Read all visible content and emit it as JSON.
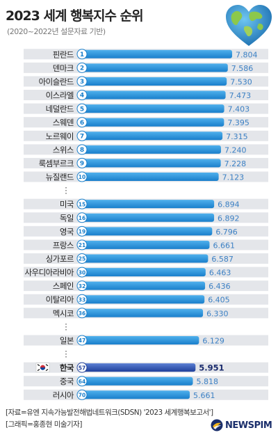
{
  "title": "2023 세계 행복지수 순위",
  "subtitle": "(2020~2022년 설문자료 기반)",
  "footer": {
    "source": "[자료=유엔 지속가능발전해법네트워크(SDSN) '2023 세계행복보고서']",
    "credit": "[그래픽=홍종현 미술기자]"
  },
  "logo": {
    "text": "NEWSPIM"
  },
  "colors": {
    "bar_light": "#4fb0ec",
    "bar_dark": "#1a7fcb",
    "highlight_light": "#5b7fd3",
    "highlight_dark": "#1f3f9a",
    "row_band": "#e4e6ea",
    "value_text": "#3c80c4",
    "highlight_text": "#1a2b6d"
  },
  "chart_data": {
    "type": "bar",
    "orientation": "horizontal",
    "title": "2023 세계 행복지수 순위",
    "subtitle": "(2020~2022년 설문자료 기반)",
    "xlim": [
      0,
      7.804
    ],
    "rows": [
      {
        "kind": "country",
        "name": "핀란드",
        "rank": "1",
        "value": "7.804"
      },
      {
        "kind": "country",
        "name": "덴마크",
        "rank": "2",
        "value": "7.586"
      },
      {
        "kind": "country",
        "name": "아이슬란드",
        "rank": "3",
        "value": "7.530"
      },
      {
        "kind": "country",
        "name": "이스라엘",
        "rank": "4",
        "value": "7.473"
      },
      {
        "kind": "country",
        "name": "네덜란드",
        "rank": "5",
        "value": "7.403"
      },
      {
        "kind": "country",
        "name": "스웨덴",
        "rank": "6",
        "value": "7.395"
      },
      {
        "kind": "country",
        "name": "노르웨이",
        "rank": "7",
        "value": "7.315"
      },
      {
        "kind": "country",
        "name": "스위스",
        "rank": "8",
        "value": "7.240"
      },
      {
        "kind": "country",
        "name": "룩셈부르크",
        "rank": "9",
        "value": "7.228"
      },
      {
        "kind": "country",
        "name": "뉴질랜드",
        "rank": "10",
        "value": "7.123"
      },
      {
        "kind": "gap",
        "name": "⋮"
      },
      {
        "kind": "country",
        "name": "미국",
        "rank": "15",
        "value": "6.894"
      },
      {
        "kind": "country",
        "name": "독일",
        "rank": "16",
        "value": "6.892"
      },
      {
        "kind": "country",
        "name": "영국",
        "rank": "19",
        "value": "6.796"
      },
      {
        "kind": "country",
        "name": "프랑스",
        "rank": "21",
        "value": "6.661"
      },
      {
        "kind": "country",
        "name": "싱가포르",
        "rank": "25",
        "value": "6.587"
      },
      {
        "kind": "country",
        "name": "사우디아라비아",
        "rank": "30",
        "value": "6.463"
      },
      {
        "kind": "country",
        "name": "스페인",
        "rank": "32",
        "value": "6.436"
      },
      {
        "kind": "country",
        "name": "이탈리아",
        "rank": "33",
        "value": "6.405"
      },
      {
        "kind": "country",
        "name": "멕시코",
        "rank": "36",
        "value": "6.330"
      },
      {
        "kind": "gap",
        "name": "⋮"
      },
      {
        "kind": "country",
        "name": "일본",
        "rank": "47",
        "value": "6.129"
      },
      {
        "kind": "gap",
        "name": "⋮"
      },
      {
        "kind": "country",
        "name": "한국",
        "rank": "57",
        "value": "5.951",
        "highlight": true
      },
      {
        "kind": "country",
        "name": "중국",
        "rank": "64",
        "value": "5.818"
      },
      {
        "kind": "country",
        "name": "러시아",
        "rank": "70",
        "value": "5.661"
      }
    ]
  }
}
